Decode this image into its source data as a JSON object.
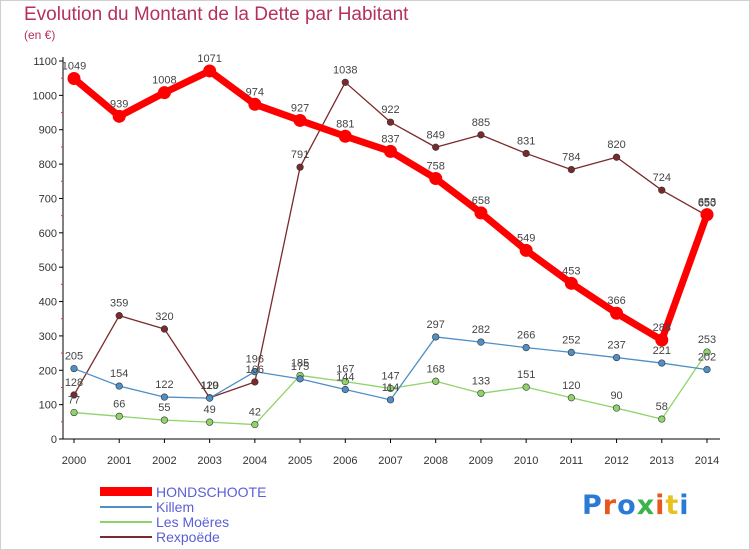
{
  "header": {
    "title": "Evolution du Montant de la Dette par Habitant",
    "subtitle": "(en €)"
  },
  "logo": {
    "text": "Proxiti",
    "colors": [
      "#2b7bd6",
      "#e8571e",
      "#2b7bd6",
      "#3cb34a",
      "#e8571e",
      "#e8c21e",
      "#2b7bd6"
    ]
  },
  "chart_data": {
    "type": "line",
    "title": "Evolution du Montant de la Dette par Habitant",
    "subtitle": "(en €)",
    "xlabel": "",
    "ylabel": "",
    "x": [
      "2000",
      "2001",
      "2002",
      "2003",
      "2004",
      "2005",
      "2006",
      "2007",
      "2008",
      "2009",
      "2010",
      "2011",
      "2012",
      "2013",
      "2014"
    ],
    "ylim": [
      0,
      1100
    ],
    "yticks": [
      0,
      100,
      200,
      300,
      400,
      500,
      600,
      700,
      800,
      900,
      1000,
      1100
    ],
    "grid": false,
    "legend": "bottom-left",
    "series": [
      {
        "name": "HONDSCHOOTE",
        "color": "#ff0000",
        "values": [
          1049,
          939,
          1008,
          1071,
          974,
          927,
          881,
          837,
          758,
          658,
          549,
          453,
          366,
          288,
          653
        ]
      },
      {
        "name": "Killem",
        "color": "#4f8fc5",
        "values": [
          205,
          154,
          122,
          119,
          196,
          175,
          144,
          114,
          297,
          282,
          266,
          252,
          237,
          221,
          202
        ]
      },
      {
        "name": "Les Moëres",
        "color": "#8fd36b",
        "values": [
          77,
          66,
          55,
          49,
          42,
          185,
          167,
          147,
          168,
          133,
          151,
          120,
          90,
          58,
          253
        ]
      },
      {
        "name": "Rexpoëde",
        "color": "#7a2a2a",
        "values": [
          128,
          359,
          320,
          120,
          166,
          791,
          1038,
          922,
          849,
          885,
          831,
          784,
          820,
          724,
          650
        ]
      }
    ]
  }
}
